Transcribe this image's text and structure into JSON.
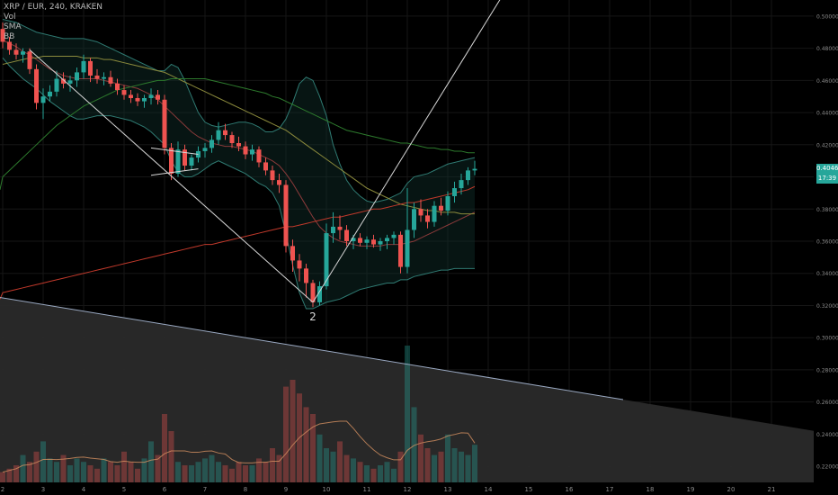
{
  "legend": {
    "symbol": "XRP / EUR, 240, KRAKEN",
    "vol": "Vol",
    "sma": "SMA",
    "bb": "BB"
  },
  "wave_label": "2",
  "price_axis": {
    "ticks": [
      0.5,
      0.48,
      0.46,
      0.44,
      0.42,
      0.4,
      0.38,
      0.36,
      0.34,
      0.32,
      0.3,
      0.28,
      0.26,
      0.24,
      0.22
    ],
    "tick_labels": [
      "0.50000",
      "0.48000",
      "0.46000",
      "0.44000",
      "0.42000",
      "0.40000",
      "0.38000",
      "0.36000",
      "0.34000",
      "0.32000",
      "0.30000",
      "0.28000",
      "0.26000",
      "0.24000",
      "0.22000"
    ],
    "last_price_label": "0.40462",
    "timer_label": "17:39",
    "last_price_color": "#26a69a"
  },
  "time_axis": {
    "labels": [
      "2",
      "3",
      "4",
      "5",
      "6",
      "7",
      "8",
      "9",
      "10",
      "11",
      "12",
      "13",
      "14",
      "15",
      "16",
      "17",
      "18",
      "19",
      "20",
      "21"
    ]
  },
  "colors": {
    "up": "#26a69a",
    "down": "#ef5350",
    "background": "#000000"
  },
  "chart_data": {
    "type": "candlestick",
    "title": "XRP / EUR, 240, KRAKEN",
    "ylim": [
      0.21,
      0.51
    ],
    "x_label_day_start": 2,
    "candles_per_day": 6,
    "candles": [
      [
        0.492,
        0.496,
        0.48,
        0.484
      ],
      [
        0.484,
        0.487,
        0.476,
        0.479
      ],
      [
        0.479,
        0.483,
        0.473,
        0.476
      ],
      [
        0.476,
        0.48,
        0.471,
        0.478
      ],
      [
        0.478,
        0.48,
        0.464,
        0.467
      ],
      [
        0.467,
        0.47,
        0.442,
        0.446
      ],
      [
        0.446,
        0.455,
        0.436,
        0.45
      ],
      [
        0.45,
        0.457,
        0.447,
        0.453
      ],
      [
        0.453,
        0.466,
        0.45,
        0.461
      ],
      [
        0.461,
        0.465,
        0.455,
        0.458
      ],
      [
        0.458,
        0.463,
        0.453,
        0.46
      ],
      [
        0.46,
        0.468,
        0.456,
        0.465
      ],
      [
        0.465,
        0.476,
        0.461,
        0.472
      ],
      [
        0.472,
        0.474,
        0.459,
        0.463
      ],
      [
        0.463,
        0.467,
        0.458,
        0.461
      ],
      [
        0.461,
        0.465,
        0.457,
        0.462
      ],
      [
        0.462,
        0.466,
        0.456,
        0.458
      ],
      [
        0.458,
        0.461,
        0.451,
        0.454
      ],
      [
        0.454,
        0.457,
        0.448,
        0.451
      ],
      [
        0.451,
        0.454,
        0.446,
        0.449
      ],
      [
        0.449,
        0.452,
        0.444,
        0.447
      ],
      [
        0.447,
        0.451,
        0.443,
        0.449
      ],
      [
        0.449,
        0.455,
        0.445,
        0.451
      ],
      [
        0.451,
        0.454,
        0.445,
        0.448
      ],
      [
        0.448,
        0.451,
        0.414,
        0.418
      ],
      [
        0.418,
        0.421,
        0.398,
        0.402
      ],
      [
        0.402,
        0.422,
        0.4,
        0.417
      ],
      [
        0.417,
        0.42,
        0.404,
        0.407
      ],
      [
        0.407,
        0.414,
        0.404,
        0.412
      ],
      [
        0.412,
        0.419,
        0.409,
        0.416
      ],
      [
        0.416,
        0.421,
        0.412,
        0.418
      ],
      [
        0.418,
        0.426,
        0.415,
        0.423
      ],
      [
        0.423,
        0.434,
        0.42,
        0.429
      ],
      [
        0.429,
        0.433,
        0.423,
        0.426
      ],
      [
        0.426,
        0.428,
        0.418,
        0.421
      ],
      [
        0.421,
        0.425,
        0.416,
        0.419
      ],
      [
        0.419,
        0.422,
        0.411,
        0.414
      ],
      [
        0.414,
        0.42,
        0.41,
        0.417
      ],
      [
        0.417,
        0.419,
        0.406,
        0.409
      ],
      [
        0.409,
        0.412,
        0.401,
        0.404
      ],
      [
        0.404,
        0.407,
        0.395,
        0.398
      ],
      [
        0.398,
        0.402,
        0.39,
        0.395
      ],
      [
        0.395,
        0.398,
        0.353,
        0.357
      ],
      [
        0.357,
        0.361,
        0.341,
        0.348
      ],
      [
        0.348,
        0.352,
        0.335,
        0.343
      ],
      [
        0.343,
        0.346,
        0.325,
        0.334
      ],
      [
        0.334,
        0.336,
        0.319,
        0.322
      ],
      [
        0.322,
        0.335,
        0.32,
        0.332
      ],
      [
        0.332,
        0.371,
        0.33,
        0.365
      ],
      [
        0.365,
        0.378,
        0.359,
        0.369
      ],
      [
        0.369,
        0.376,
        0.361,
        0.367
      ],
      [
        0.367,
        0.37,
        0.357,
        0.36
      ],
      [
        0.36,
        0.364,
        0.355,
        0.362
      ],
      [
        0.362,
        0.365,
        0.357,
        0.359
      ],
      [
        0.359,
        0.363,
        0.355,
        0.361
      ],
      [
        0.361,
        0.364,
        0.356,
        0.358
      ],
      [
        0.358,
        0.362,
        0.354,
        0.36
      ],
      [
        0.36,
        0.364,
        0.355,
        0.362
      ],
      [
        0.362,
        0.366,
        0.358,
        0.364
      ],
      [
        0.364,
        0.366,
        0.34,
        0.344
      ],
      [
        0.344,
        0.393,
        0.34,
        0.367
      ],
      [
        0.367,
        0.384,
        0.362,
        0.38
      ],
      [
        0.38,
        0.386,
        0.372,
        0.376
      ],
      [
        0.376,
        0.38,
        0.368,
        0.372
      ],
      [
        0.372,
        0.385,
        0.369,
        0.382
      ],
      [
        0.382,
        0.387,
        0.376,
        0.379
      ],
      [
        0.379,
        0.391,
        0.376,
        0.388
      ],
      [
        0.388,
        0.397,
        0.384,
        0.393
      ],
      [
        0.393,
        0.402,
        0.389,
        0.398
      ],
      [
        0.398,
        0.406,
        0.395,
        0.404
      ],
      [
        0.404,
        0.41,
        0.401,
        0.405
      ]
    ],
    "volume": [
      3,
      4,
      5,
      8,
      6,
      9,
      12,
      7,
      6,
      8,
      5,
      7,
      6,
      5,
      4,
      7,
      6,
      5,
      9,
      6,
      4,
      7,
      12,
      8,
      20,
      15,
      6,
      5,
      5,
      6,
      7,
      8,
      6,
      5,
      4,
      6,
      5,
      5,
      7,
      6,
      10,
      8,
      28,
      30,
      26,
      22,
      20,
      14,
      10,
      9,
      12,
      8,
      7,
      6,
      5,
      4,
      5,
      6,
      4,
      9,
      40,
      22,
      14,
      10,
      8,
      9,
      14,
      10,
      9,
      8,
      11
    ],
    "volume_ylim": [
      0,
      45
    ],
    "sma": [
      0.47,
      0.471,
      0.472,
      0.473,
      0.474,
      0.474,
      0.475,
      0.475,
      0.475,
      0.475,
      0.475,
      0.475,
      0.474,
      0.474,
      0.474,
      0.473,
      0.473,
      0.472,
      0.471,
      0.47,
      0.469,
      0.468,
      0.467,
      0.466,
      0.465,
      0.463,
      0.461,
      0.459,
      0.457,
      0.455,
      0.453,
      0.451,
      0.449,
      0.447,
      0.445,
      0.443,
      0.441,
      0.439,
      0.437,
      0.435,
      0.433,
      0.431,
      0.429,
      0.426,
      0.423,
      0.42,
      0.417,
      0.414,
      0.411,
      0.408,
      0.405,
      0.402,
      0.399,
      0.396,
      0.393,
      0.391,
      0.389,
      0.387,
      0.385,
      0.383,
      0.382,
      0.381,
      0.38,
      0.379,
      0.379,
      0.378,
      0.378,
      0.378,
      0.377,
      0.377,
      0.377
    ],
    "sma_long": [
      0.4,
      0.404,
      0.408,
      0.412,
      0.416,
      0.42,
      0.424,
      0.428,
      0.432,
      0.435,
      0.438,
      0.441,
      0.444,
      0.446,
      0.448,
      0.45,
      0.452,
      0.454,
      0.455,
      0.456,
      0.457,
      0.458,
      0.459,
      0.46,
      0.46,
      0.461,
      0.461,
      0.461,
      0.461,
      0.461,
      0.461,
      0.46,
      0.459,
      0.458,
      0.457,
      0.456,
      0.455,
      0.454,
      0.453,
      0.452,
      0.45,
      0.449,
      0.447,
      0.445,
      0.443,
      0.441,
      0.439,
      0.437,
      0.435,
      0.433,
      0.431,
      0.429,
      0.428,
      0.427,
      0.426,
      0.425,
      0.424,
      0.423,
      0.422,
      0.421,
      0.421,
      0.42,
      0.419,
      0.418,
      0.418,
      0.417,
      0.417,
      0.416,
      0.416,
      0.415,
      0.415
    ],
    "trend_ema": [
      0.328,
      0.329,
      0.33,
      0.331,
      0.332,
      0.333,
      0.334,
      0.335,
      0.336,
      0.337,
      0.338,
      0.339,
      0.34,
      0.341,
      0.342,
      0.343,
      0.344,
      0.345,
      0.346,
      0.347,
      0.348,
      0.349,
      0.35,
      0.351,
      0.352,
      0.353,
      0.354,
      0.355,
      0.356,
      0.357,
      0.358,
      0.358,
      0.359,
      0.36,
      0.361,
      0.362,
      0.363,
      0.364,
      0.365,
      0.366,
      0.367,
      0.368,
      0.369,
      0.369,
      0.37,
      0.371,
      0.372,
      0.373,
      0.374,
      0.375,
      0.375,
      0.376,
      0.377,
      0.378,
      0.379,
      0.38,
      0.38,
      0.381,
      0.382,
      0.383,
      0.384,
      0.384,
      0.385,
      0.386,
      0.387,
      0.388,
      0.389,
      0.39,
      0.391,
      0.392,
      0.394
    ],
    "bb_mid": [
      0.485,
      0.483,
      0.481,
      0.478,
      0.476,
      0.473,
      0.47,
      0.467,
      0.465,
      0.463,
      0.462,
      0.461,
      0.461,
      0.461,
      0.461,
      0.46,
      0.459,
      0.458,
      0.457,
      0.456,
      0.455,
      0.453,
      0.451,
      0.448,
      0.444,
      0.44,
      0.436,
      0.432,
      0.428,
      0.425,
      0.423,
      0.421,
      0.42,
      0.419,
      0.419,
      0.418,
      0.417,
      0.416,
      0.414,
      0.412,
      0.41,
      0.407,
      0.402,
      0.396,
      0.389,
      0.382,
      0.375,
      0.369,
      0.365,
      0.362,
      0.36,
      0.359,
      0.358,
      0.357,
      0.357,
      0.357,
      0.357,
      0.358,
      0.358,
      0.358,
      0.359,
      0.36,
      0.362,
      0.364,
      0.366,
      0.368,
      0.37,
      0.372,
      0.374,
      0.376,
      0.378
    ],
    "bb_upper": [
      0.498,
      0.497,
      0.496,
      0.494,
      0.492,
      0.49,
      0.489,
      0.488,
      0.487,
      0.486,
      0.486,
      0.486,
      0.486,
      0.485,
      0.484,
      0.482,
      0.48,
      0.478,
      0.476,
      0.474,
      0.472,
      0.47,
      0.468,
      0.466,
      0.466,
      0.47,
      0.468,
      0.46,
      0.45,
      0.44,
      0.434,
      0.432,
      0.431,
      0.432,
      0.433,
      0.434,
      0.434,
      0.433,
      0.431,
      0.428,
      0.428,
      0.43,
      0.436,
      0.446,
      0.458,
      0.462,
      0.46,
      0.45,
      0.438,
      0.42,
      0.408,
      0.398,
      0.392,
      0.388,
      0.385,
      0.384,
      0.385,
      0.386,
      0.388,
      0.39,
      0.396,
      0.4,
      0.401,
      0.402,
      0.404,
      0.406,
      0.408,
      0.409,
      0.41,
      0.411,
      0.412
    ],
    "bb_lower": [
      0.474,
      0.469,
      0.465,
      0.461,
      0.458,
      0.455,
      0.451,
      0.447,
      0.444,
      0.441,
      0.438,
      0.436,
      0.436,
      0.437,
      0.438,
      0.438,
      0.438,
      0.437,
      0.436,
      0.435,
      0.433,
      0.431,
      0.428,
      0.424,
      0.42,
      0.41,
      0.403,
      0.4,
      0.4,
      0.402,
      0.405,
      0.408,
      0.41,
      0.408,
      0.406,
      0.404,
      0.402,
      0.399,
      0.396,
      0.394,
      0.39,
      0.382,
      0.365,
      0.345,
      0.328,
      0.318,
      0.318,
      0.32,
      0.322,
      0.323,
      0.324,
      0.326,
      0.328,
      0.33,
      0.331,
      0.332,
      0.333,
      0.334,
      0.334,
      0.336,
      0.336,
      0.338,
      0.339,
      0.34,
      0.341,
      0.342,
      0.342,
      0.343,
      0.343,
      0.343,
      0.343
    ],
    "lines": [
      {
        "name": "decline-trendline",
        "from": [
          4,
          0.479
        ],
        "to": [
          46,
          0.322
        ]
      },
      {
        "name": "rise-trendline",
        "from": [
          46,
          0.322
        ],
        "to": [
          74,
          0.512
        ]
      },
      {
        "name": "channel-line",
        "from": [
          22,
          0.401
        ],
        "to": [
          29,
          0.405
        ]
      },
      {
        "name": "flag-line",
        "from": [
          22,
          0.418
        ],
        "to": [
          29,
          0.414
        ]
      },
      {
        "name": "support-trendline",
        "from": [
          -4,
          0.3275
        ],
        "to": [
          92,
          0.2615
        ]
      }
    ]
  }
}
